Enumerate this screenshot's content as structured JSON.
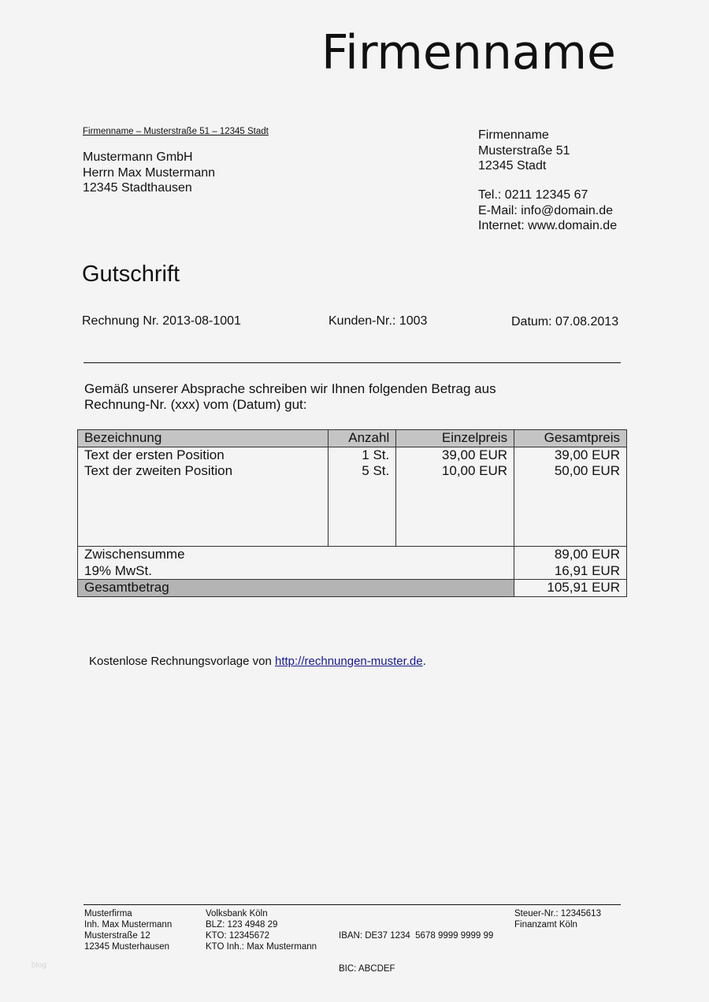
{
  "logo": "Firmenname",
  "sender_line": "Firmenname – Musterstraße 51 – 12345 Stadt",
  "recipient": [
    "Mustermann GmbH",
    "Herrn Max Mustermann",
    "12345 Stadthausen"
  ],
  "company": [
    "Firmenname",
    "Musterstraße 51",
    "12345 Stadt"
  ],
  "contact": [
    "Tel.: 0211 12345 67",
    "E-Mail: info@domain.de",
    "Internet: www.domain.de"
  ],
  "title": "Gutschrift",
  "meta": {
    "invoice": "Rechnung Nr. 2013-08-1001",
    "customer": "Kunden-Nr.: 1003",
    "date": "Datum: 07.08.2013"
  },
  "intro": [
    "Gemäß unserer Absprache schreiben wir Ihnen folgenden Betrag aus",
    "Rechnung-Nr. (xxx) vom (Datum) gut:"
  ],
  "table": {
    "headers": [
      "Bezeichnung",
      "Anzahl",
      "Einzelpreis",
      "Gesamtpreis"
    ],
    "rows": [
      [
        "Text der ersten Position",
        "1 St.",
        "39,00 EUR",
        "39,00 EUR"
      ],
      [
        "Text der zweiten Position",
        "5 St.",
        "10,00 EUR",
        "50,00 EUR"
      ]
    ],
    "subtotal_label": "Zwischensumme",
    "subtotal": "89,00 EUR",
    "vat_label": "19% MwSt.",
    "vat": "16,91 EUR",
    "total_label": "Gesamtbetrag",
    "total": "105,91 EUR"
  },
  "note": {
    "text": "Kostenlose Rechnungsvorlage von ",
    "link": "http://rechnungen-muster.de",
    "suffix": "."
  },
  "footer": [
    [
      "Musterfirma",
      "Inh. Max Mustermann",
      "Musterstraße 12",
      "12345 Musterhausen"
    ],
    [
      "Volksbank Köln",
      "BLZ: 123 4948 29",
      "KTO: 12345672",
      "KTO Inh.: Max Mustermann"
    ],
    [
      "IBAN: DE37 1234  5678 9999 9999 99",
      "BIC: ABCDEF"
    ],
    [
      "Steuer-Nr.: 12345613",
      "Finanzamt Köln"
    ]
  ],
  "watermark": "blog"
}
